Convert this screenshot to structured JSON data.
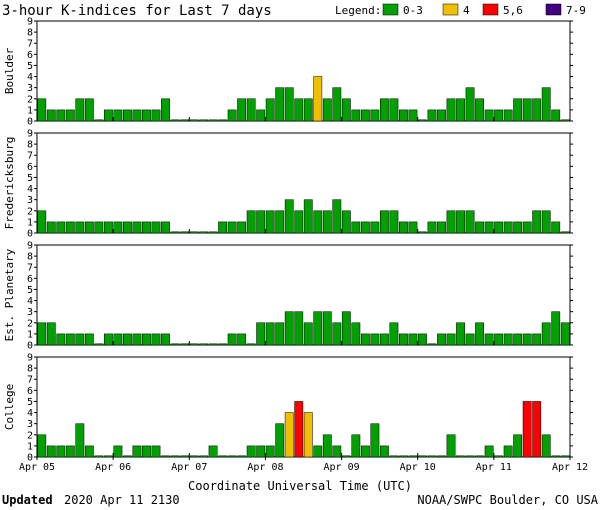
{
  "title": "3-hour K-indices for Last 7 days",
  "legend": {
    "label": "Legend:",
    "items": [
      {
        "text": "0-3",
        "color": "#00a000"
      },
      {
        "text": "4",
        "color": "#f0c000"
      },
      {
        "text": "5,6",
        "color": "#ff0000"
      },
      {
        "text": "7-9",
        "color": "#400080"
      }
    ]
  },
  "footer": {
    "updated_label": "Updated",
    "updated_value": "2020 Apr 11 2130",
    "credit": "NOAA/SWPC Boulder, CO USA"
  },
  "chart_data": [
    {
      "type": "bar",
      "ylabel": "Boulder",
      "ylim": [
        0,
        9
      ],
      "yticks": [
        "0",
        "1",
        "2",
        "3",
        "4",
        "5",
        "6",
        "7",
        "8",
        "9"
      ],
      "xlabel": "Coordinate Universal Time (UTC)",
      "xticks": [
        "Apr 05",
        "Apr 06",
        "Apr 07",
        "Apr 08",
        "Apr 09",
        "Apr 10",
        "Apr 11",
        "Apr 12"
      ],
      "values": [
        2,
        1,
        1,
        1,
        2,
        2,
        0,
        1,
        1,
        1,
        1,
        1,
        1,
        2,
        0,
        0,
        0,
        0,
        0,
        0,
        1,
        2,
        2,
        1,
        2,
        3,
        3,
        2,
        2,
        4,
        2,
        3,
        2,
        1,
        1,
        1,
        2,
        2,
        1,
        1,
        0,
        1,
        1,
        2,
        2,
        3,
        2,
        1,
        1,
        1,
        2,
        2,
        2,
        3,
        1,
        0
      ]
    },
    {
      "type": "bar",
      "ylabel": "Fredericksburg",
      "ylim": [
        0,
        9
      ],
      "yticks": [
        "0",
        "1",
        "2",
        "3",
        "4",
        "5",
        "6",
        "7",
        "8",
        "9"
      ],
      "xlabel": "Coordinate Universal Time (UTC)",
      "xticks": [
        "Apr 05",
        "Apr 06",
        "Apr 07",
        "Apr 08",
        "Apr 09",
        "Apr 10",
        "Apr 11",
        "Apr 12"
      ],
      "values": [
        2,
        1,
        1,
        1,
        1,
        1,
        1,
        1,
        1,
        1,
        1,
        1,
        1,
        1,
        0,
        0,
        0,
        0,
        0,
        1,
        1,
        1,
        2,
        2,
        2,
        2,
        3,
        2,
        3,
        2,
        2,
        3,
        2,
        1,
        1,
        1,
        2,
        2,
        1,
        1,
        0,
        1,
        1,
        2,
        2,
        2,
        1,
        1,
        1,
        1,
        1,
        1,
        2,
        2,
        1,
        0
      ]
    },
    {
      "type": "bar",
      "ylabel": "Est. Planetary",
      "ylim": [
        0,
        9
      ],
      "yticks": [
        "0",
        "1",
        "2",
        "3",
        "4",
        "5",
        "6",
        "7",
        "8",
        "9"
      ],
      "xlabel": "Coordinate Universal Time (UTC)",
      "xticks": [
        "Apr 05",
        "Apr 06",
        "Apr 07",
        "Apr 08",
        "Apr 09",
        "Apr 10",
        "Apr 11",
        "Apr 12"
      ],
      "values": [
        2,
        2,
        1,
        1,
        1,
        1,
        0,
        1,
        1,
        1,
        1,
        1,
        1,
        1,
        0,
        0,
        0,
        0,
        0,
        0,
        1,
        1,
        0,
        2,
        2,
        2,
        3,
        3,
        2,
        3,
        3,
        2,
        3,
        2,
        1,
        1,
        1,
        2,
        1,
        1,
        1,
        0,
        1,
        1,
        2,
        1,
        2,
        1,
        1,
        1,
        1,
        1,
        1,
        2,
        3,
        2
      ]
    },
    {
      "type": "bar",
      "ylabel": "College",
      "ylim": [
        0,
        9
      ],
      "yticks": [
        "0",
        "1",
        "2",
        "3",
        "4",
        "5",
        "6",
        "7",
        "8",
        "9"
      ],
      "xlabel": "Coordinate Universal Time (UTC)",
      "xticks": [
        "Apr 05",
        "Apr 06",
        "Apr 07",
        "Apr 08",
        "Apr 09",
        "Apr 10",
        "Apr 11",
        "Apr 12"
      ],
      "values": [
        2,
        1,
        1,
        1,
        3,
        1,
        0,
        0,
        1,
        0,
        1,
        1,
        1,
        0,
        0,
        0,
        0,
        0,
        1,
        0,
        0,
        0,
        1,
        1,
        1,
        3,
        4,
        5,
        4,
        1,
        2,
        1,
        0,
        2,
        1,
        3,
        1,
        0,
        0,
        0,
        0,
        0,
        0,
        2,
        0,
        0,
        0,
        1,
        0,
        1,
        2,
        5,
        5,
        2,
        0,
        0
      ]
    }
  ]
}
